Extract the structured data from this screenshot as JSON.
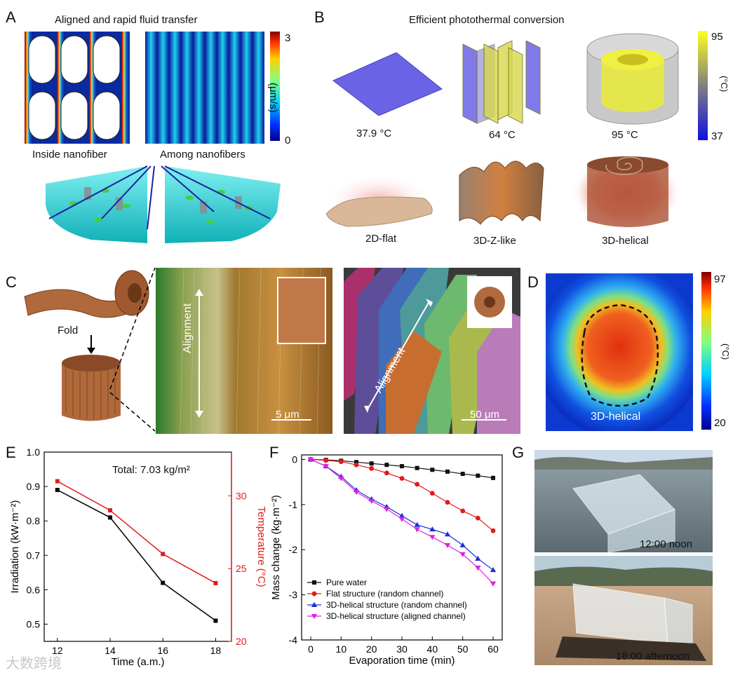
{
  "panels": {
    "A": {
      "letter": "A",
      "title": "Aligned and rapid fluid transfer",
      "left_caption": "Inside nanofiber",
      "right_caption": "Among nanofibers",
      "colorbar": {
        "max": "3",
        "min": "0",
        "unit": "(μm/s)"
      }
    },
    "B": {
      "letter": "B",
      "title": "Efficient photothermal conversion",
      "temps": [
        "37.9 °C",
        "64 °C",
        "95 °C"
      ],
      "structures": [
        "2D-flat",
        "3D-Z-like",
        "3D-helical"
      ],
      "colorbar": {
        "max": "95",
        "min": "37",
        "unit": "(°C)"
      },
      "colors": {
        "flat": "#6a63e6",
        "yellow": "#d8d84a",
        "gray": "#c9c9c9"
      }
    },
    "C": {
      "letter": "C",
      "fold_label": "Fold",
      "align_label": "Alignment",
      "scale_left": "5 μm",
      "scale_right": "50 μm"
    },
    "D": {
      "letter": "D",
      "label": "3D-helical",
      "colorbar": {
        "max": "97",
        "min": "20",
        "unit": "(°C)"
      }
    },
    "E": {
      "letter": "E",
      "annotation": "Total: 7.03 kg/m²"
    },
    "F": {
      "letter": "F"
    },
    "G": {
      "letter": "G",
      "captions": [
        "12:00 noon",
        "18:00 afternoon"
      ]
    }
  },
  "watermark": "大数跨境",
  "chart_data": [
    {
      "panel": "E",
      "type": "line",
      "x": [
        12,
        14,
        16,
        18
      ],
      "xlabel": "Time (a.m.)",
      "xlim": [
        11.5,
        18.6
      ],
      "xticks": [
        12,
        14,
        16,
        18
      ],
      "series": [
        {
          "name": "Irradiation",
          "axis": "left",
          "color": "#000000",
          "marker": "square",
          "values": [
            0.89,
            0.81,
            0.62,
            0.51
          ]
        },
        {
          "name": "Temperature",
          "axis": "right",
          "color": "#e01b1b",
          "marker": "square",
          "values": [
            31.0,
            29.0,
            26.0,
            24.0
          ]
        }
      ],
      "ylabel_left": "Irradiation (kW·m⁻²)",
      "ylim_left": [
        0.45,
        1.0
      ],
      "yticks_left": [
        "0.5",
        "0.6",
        "0.7",
        "0.8",
        "0.9",
        "1.0"
      ],
      "ylabel_right": "Temperature (°C)",
      "ylim_right": [
        20,
        33
      ],
      "yticks_right": [
        "20",
        "25",
        "30"
      ]
    },
    {
      "panel": "F",
      "type": "line",
      "xlabel": "Evaporation time (min)",
      "xlim": [
        -3,
        63
      ],
      "xticks": [
        0,
        10,
        20,
        30,
        40,
        50,
        60
      ],
      "ylabel": "Mass change (kg·m⁻²)",
      "ylim": [
        -4,
        0.1
      ],
      "yticks": [
        "0",
        "-1",
        "-2",
        "-3",
        "-4"
      ],
      "legend_position": "bottom-left",
      "series": [
        {
          "name": "Pure water",
          "color": "#111111",
          "marker": "square",
          "x": [
            0,
            5,
            10,
            15,
            20,
            25,
            30,
            35,
            40,
            45,
            50,
            55,
            60
          ],
          "values": [
            0,
            -0.01,
            -0.03,
            -0.06,
            -0.09,
            -0.12,
            -0.15,
            -0.19,
            -0.23,
            -0.27,
            -0.32,
            -0.36,
            -0.41
          ]
        },
        {
          "name": "Flat structure (random channel)",
          "color": "#e01b1b",
          "marker": "circle",
          "x": [
            0,
            5,
            10,
            15,
            20,
            25,
            30,
            35,
            40,
            45,
            50,
            55,
            60
          ],
          "values": [
            0,
            -0.02,
            -0.05,
            -0.12,
            -0.2,
            -0.3,
            -0.42,
            -0.55,
            -0.75,
            -0.95,
            -1.14,
            -1.3,
            -1.58
          ]
        },
        {
          "name": "3D-helical structure (random channel)",
          "color": "#2030d8",
          "marker": "triangle-up",
          "x": [
            0,
            5,
            10,
            15,
            20,
            25,
            30,
            35,
            40,
            45,
            50,
            55,
            60
          ],
          "values": [
            0,
            -0.15,
            -0.38,
            -0.68,
            -0.88,
            -1.05,
            -1.25,
            -1.45,
            -1.55,
            -1.66,
            -1.9,
            -2.2,
            -2.45
          ]
        },
        {
          "name": "3D-helical structure (aligned channel)",
          "color": "#e020e0",
          "marker": "triangle-down",
          "x": [
            0,
            5,
            10,
            15,
            20,
            25,
            30,
            35,
            40,
            45,
            50,
            55,
            60
          ],
          "values": [
            0,
            -0.15,
            -0.42,
            -0.72,
            -0.92,
            -1.1,
            -1.32,
            -1.55,
            -1.72,
            -1.9,
            -2.1,
            -2.4,
            -2.75
          ]
        }
      ]
    }
  ]
}
